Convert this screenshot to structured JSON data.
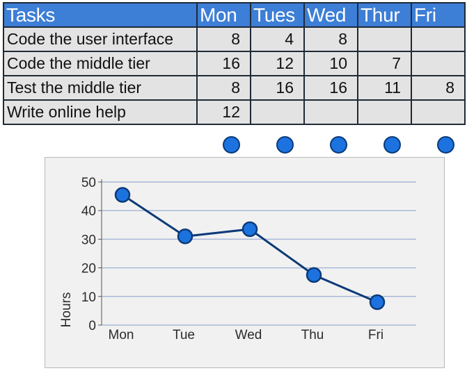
{
  "table": {
    "headers": [
      "Tasks",
      "Mon",
      "Tues",
      "Wed",
      "Thur",
      "Fri"
    ],
    "rows": [
      {
        "task": "Code the user interface",
        "values": [
          "8",
          "4",
          "8",
          "",
          ""
        ]
      },
      {
        "task": "Code the middle tier",
        "values": [
          "16",
          "12",
          "10",
          "7",
          ""
        ]
      },
      {
        "task": "Test the middle tier",
        "values": [
          "8",
          "16",
          "16",
          "11",
          "8"
        ]
      },
      {
        "task": "Write online help",
        "values": [
          "12",
          "",
          "",
          "",
          ""
        ]
      }
    ]
  },
  "colors": {
    "header_bg": "#3d7ed6",
    "cell_bg": "#e3e3e3",
    "line": "#0b3a78",
    "marker_fill": "#1c73e0",
    "gridline": "#a8b8d8"
  },
  "chart_data": {
    "type": "line",
    "categories": [
      "Mon",
      "Tue",
      "Wed",
      "Thu",
      "Fri"
    ],
    "values": [
      45.5,
      31,
      33.5,
      17.5,
      8
    ],
    "title": "",
    "xlabel": "",
    "ylabel": "Hours",
    "ylim": [
      0,
      50
    ],
    "yticks": [
      "0",
      "10",
      "20",
      "30",
      "40",
      "50"
    ],
    "grid": true,
    "legend": "none"
  }
}
